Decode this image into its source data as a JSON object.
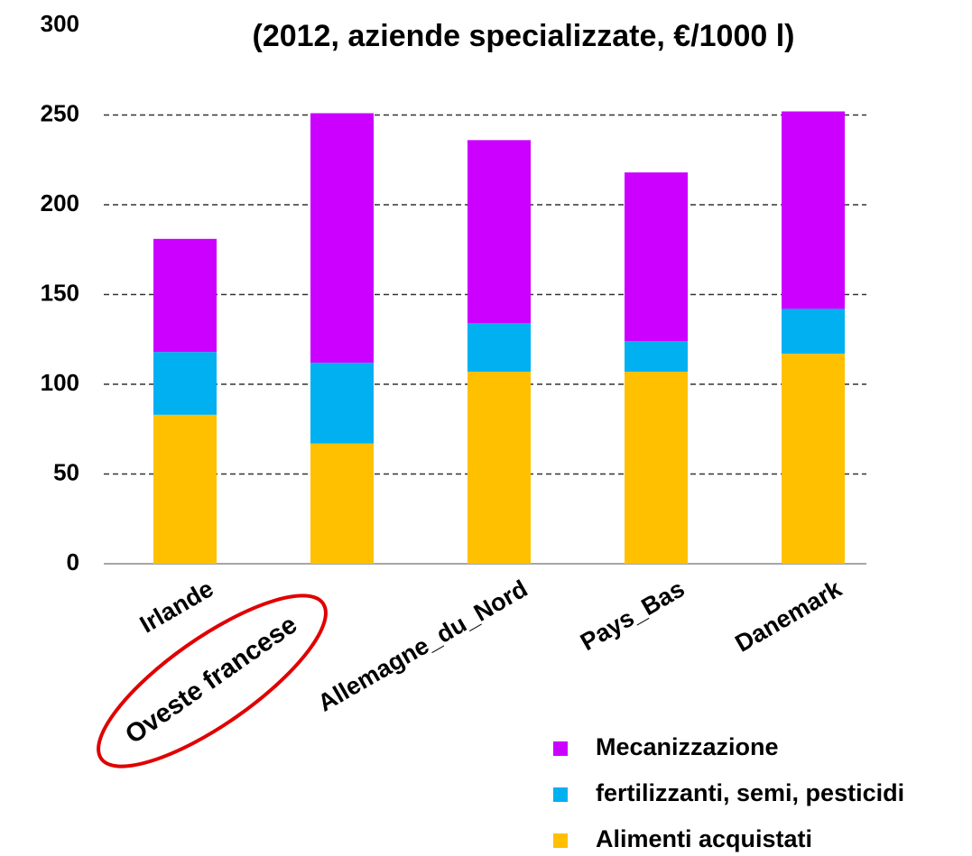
{
  "chart_data": {
    "type": "stacked_bar",
    "title": "(2012, aziende specializzate, €/1000 l)",
    "categories": [
      "Irlande",
      null,
      "Allemagne_du_Nord",
      "Pays_Bas",
      "Danemark"
    ],
    "annotation": "Oveste francese",
    "series": [
      {
        "name": "Alimenti acquistati",
        "color": "#ffc000",
        "values": [
          83,
          67,
          107,
          107,
          117
        ]
      },
      {
        "name": "fertilizzanti, semi, pesticidi",
        "color": "#00b0f0",
        "values": [
          35,
          45,
          27,
          17,
          25
        ]
      },
      {
        "name": "Mecanizzazione",
        "color": "#cc00ff",
        "values": [
          63,
          139,
          102,
          94,
          110
        ]
      }
    ],
    "ylim": [
      0,
      300
    ],
    "yticks": [
      0,
      50,
      100,
      150,
      200,
      250,
      300
    ],
    "grid": true,
    "legend": "bottom-right"
  }
}
